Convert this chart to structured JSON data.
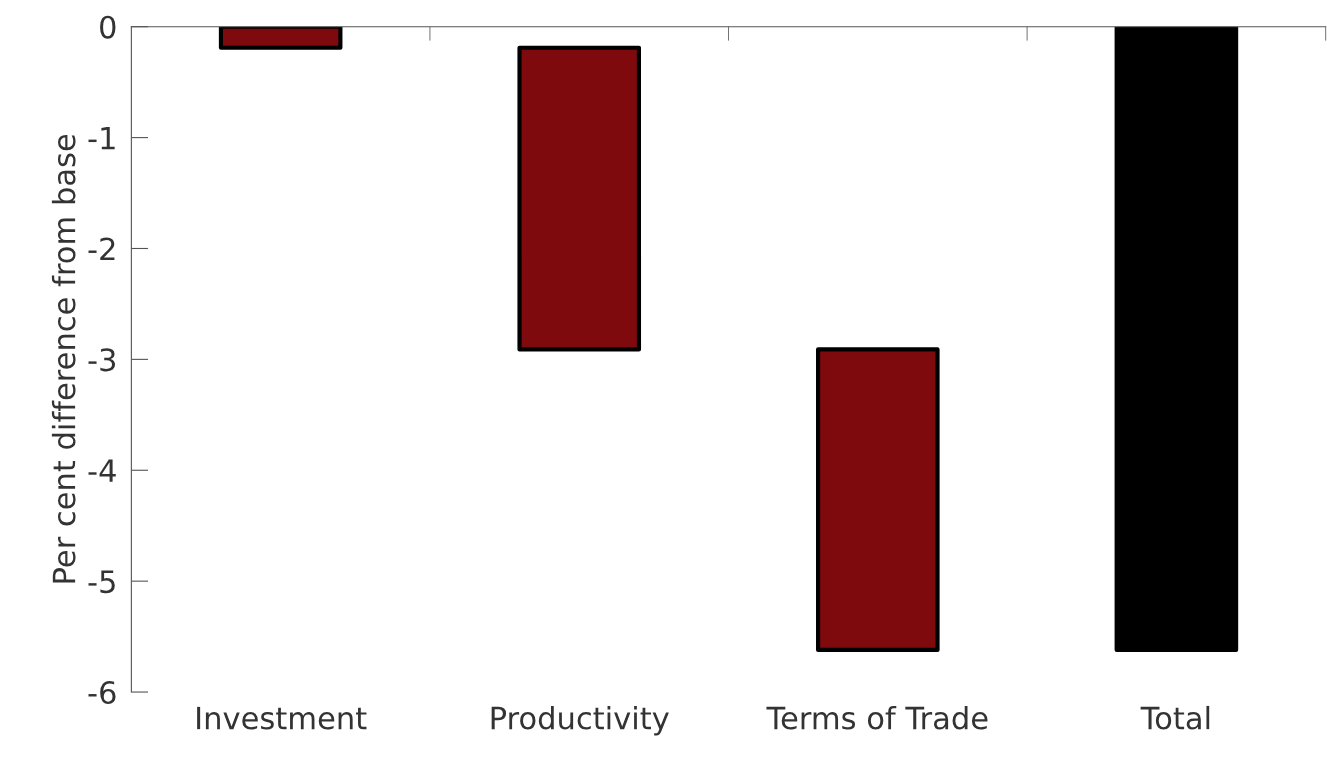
{
  "chart_data": {
    "type": "bar",
    "ylabel": "Per cent difference from base",
    "categories": [
      "Investment",
      "Productivity",
      "Terms of Trade",
      "Total"
    ],
    "values": [
      -0.19,
      -2.72,
      -2.71,
      -5.62
    ],
    "base": [
      0,
      -0.19,
      -2.91,
      0
    ],
    "colors": [
      "#7f0a0e",
      "#7f0a0e",
      "#7f0a0e",
      "#000000"
    ],
    "ylim": [
      -6,
      0
    ],
    "yticks": [
      {
        "value": -6,
        "label": "-6"
      },
      {
        "value": -5,
        "label": "-5"
      },
      {
        "value": -4,
        "label": "-4"
      },
      {
        "value": -3,
        "label": "-3"
      },
      {
        "value": -2,
        "label": "-2"
      },
      {
        "value": -1,
        "label": "-1"
      },
      0
    ],
    "grid": false,
    "legend": false
  }
}
